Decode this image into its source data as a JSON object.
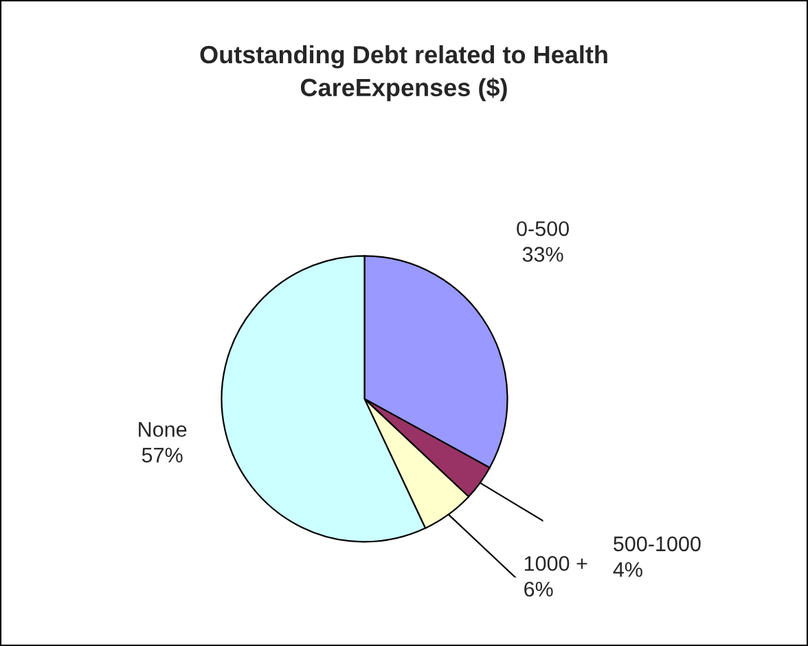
{
  "chart_data": {
    "type": "pie",
    "title": "Outstanding Debt related to Health\nCareExpenses ($)",
    "categories": [
      "0-500",
      "500-1000",
      "1000 +",
      "None"
    ],
    "values": [
      33,
      4,
      6,
      57
    ],
    "value_labels": [
      "33%",
      "4%",
      "6%",
      "57%"
    ],
    "colors": [
      "#9999ff",
      "#993366",
      "#ffffcc",
      "#ccffff"
    ],
    "legend": false
  }
}
